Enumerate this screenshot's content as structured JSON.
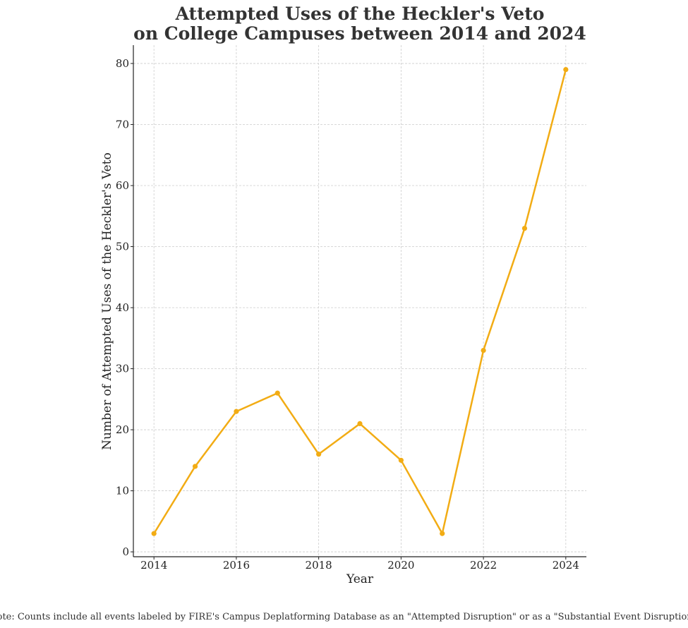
{
  "chart_data": {
    "type": "line",
    "title_lines": [
      "Attempted Uses of the Heckler's Veto",
      "on College Campuses between 2014 and 2024"
    ],
    "xlabel": "Year",
    "ylabel": "Number of Attempted Uses of the Heckler's Veto",
    "x": [
      2014,
      2015,
      2016,
      2017,
      2018,
      2019,
      2020,
      2021,
      2022,
      2023,
      2024
    ],
    "series": [
      {
        "name": "Attempted Uses",
        "values": [
          3,
          14,
          23,
          26,
          16,
          21,
          15,
          3,
          33,
          53,
          79
        ]
      }
    ],
    "xlim": [
      2013.5,
      2024.5
    ],
    "ylim": [
      -0.8,
      83
    ],
    "xticks": [
      2014,
      2016,
      2018,
      2020,
      2022,
      2024
    ],
    "yticks": [
      0,
      10,
      20,
      30,
      40,
      50,
      60,
      70,
      80
    ],
    "grid": true,
    "line_color": "#f2ac14",
    "note": "Note: Counts include all events labeled by FIRE's Campus Deplatforming Database as an \"Attempted Disruption\" or as a \"Substantial Event Disruption.\""
  }
}
